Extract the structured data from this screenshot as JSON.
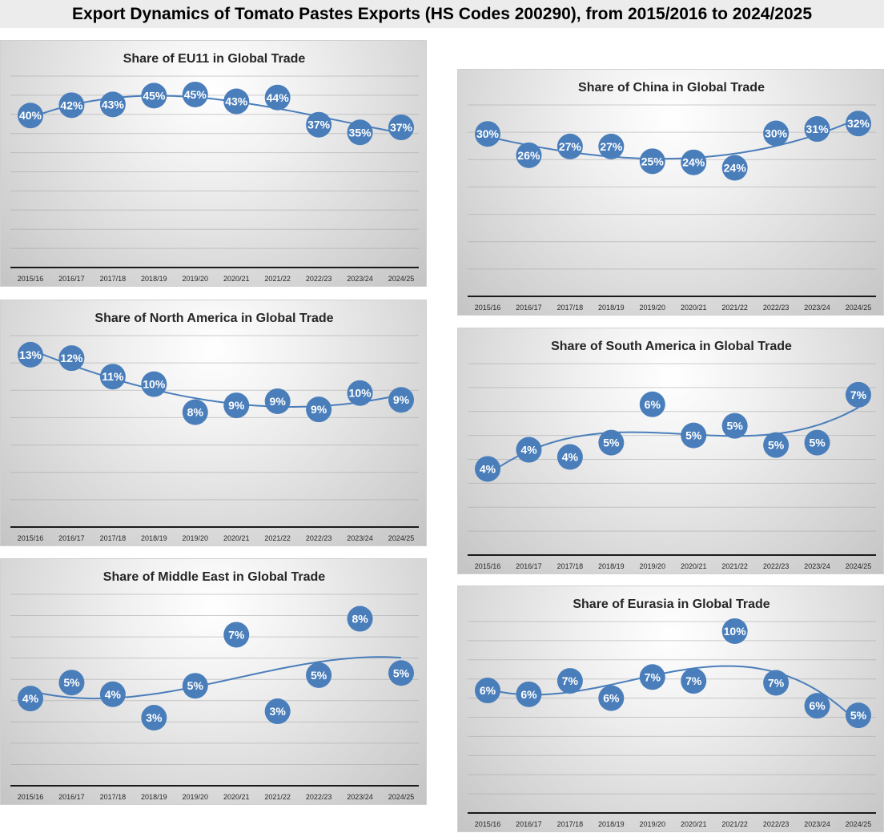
{
  "header": {
    "title": "Export Dynamics of Tomato Pastes Exports (HS Codes 200290), from 2015/2016 to 2024/2025"
  },
  "colors": {
    "marker": "#4a7ebb",
    "trendline": "#4a7ebb",
    "grid": "#a6a6a6",
    "axis": "#1a1a1a"
  },
  "chart_data": [
    {
      "id": "eu11",
      "type": "line",
      "title": "Share of EU11 in Global Trade",
      "categories": [
        "2015/16",
        "2016/17",
        "2017/18",
        "2018/19",
        "2019/20",
        "2020/21",
        "2021/22",
        "2022/23",
        "2023/24",
        "2024/25"
      ],
      "values": [
        39.7,
        42.4,
        42.6,
        44.9,
        45.2,
        43.4,
        44.4,
        37.3,
        35.3,
        36.6
      ],
      "labels": [
        "40%",
        "42%",
        "43%",
        "45%",
        "45%",
        "43%",
        "44%",
        "37%",
        "35%",
        "37%"
      ],
      "ylim": [
        0,
        50
      ],
      "ystep": 5,
      "grid": true,
      "trendline": "polynomial-3"
    },
    {
      "id": "north-america",
      "type": "line",
      "title": "Share of North America in Global Trade",
      "categories": [
        "2015/16",
        "2016/17",
        "2017/18",
        "2018/19",
        "2019/20",
        "2020/21",
        "2021/22",
        "2022/23",
        "2023/24",
        "2024/25"
      ],
      "values": [
        12.6,
        12.35,
        11.0,
        10.45,
        8.4,
        8.9,
        9.2,
        8.6,
        9.8,
        9.3
      ],
      "labels": [
        "13%",
        "12%",
        "11%",
        "10%",
        "8%",
        "9%",
        "9%",
        "9%",
        "10%",
        "9%"
      ],
      "ylim": [
        0,
        14
      ],
      "ystep": 2,
      "grid": true,
      "trendline": "polynomial-3"
    },
    {
      "id": "middle-east",
      "type": "line",
      "title": "Share of Middle East in Global Trade",
      "categories": [
        "2015/16",
        "2016/17",
        "2017/18",
        "2018/19",
        "2019/20",
        "2020/21",
        "2021/22",
        "2022/23",
        "2023/24",
        "2024/25"
      ],
      "values": [
        4.1,
        4.85,
        4.3,
        3.2,
        4.7,
        7.1,
        3.5,
        5.2,
        7.85,
        5.3
      ],
      "labels": [
        "4%",
        "5%",
        "4%",
        "3%",
        "5%",
        "7%",
        "3%",
        "5%",
        "8%",
        "5%"
      ],
      "ylim": [
        0,
        9
      ],
      "ystep": 1,
      "grid": true,
      "trendline": "polynomial-3"
    },
    {
      "id": "china",
      "type": "line",
      "title": "Share of China in Global Trade",
      "categories": [
        "2015/16",
        "2016/17",
        "2017/18",
        "2018/19",
        "2019/20",
        "2020/21",
        "2021/22",
        "2022/23",
        "2023/24",
        "2024/25"
      ],
      "values": [
        29.7,
        25.8,
        27.4,
        27.4,
        24.7,
        24.5,
        23.5,
        29.8,
        30.6,
        31.6
      ],
      "labels": [
        "30%",
        "26%",
        "27%",
        "27%",
        "25%",
        "24%",
        "24%",
        "30%",
        "31%",
        "32%"
      ],
      "ylim": [
        0,
        35
      ],
      "ystep": 5,
      "grid": true,
      "trendline": "polynomial-3"
    },
    {
      "id": "south-america",
      "type": "line",
      "title": "Share of South America in Global Trade",
      "categories": [
        "2015/16",
        "2016/17",
        "2017/18",
        "2018/19",
        "2019/20",
        "2020/21",
        "2021/22",
        "2022/23",
        "2023/24",
        "2024/25"
      ],
      "values": [
        3.6,
        4.4,
        4.1,
        4.7,
        6.3,
        5.0,
        5.4,
        4.6,
        4.7,
        6.7
      ],
      "labels": [
        "4%",
        "4%",
        "4%",
        "5%",
        "6%",
        "5%",
        "5%",
        "5%",
        "5%",
        "7%"
      ],
      "ylim": [
        0,
        8
      ],
      "ystep": 1,
      "grid": true,
      "trendline": "polynomial-3"
    },
    {
      "id": "eurasia",
      "type": "line",
      "title": "Share of Eurasia in Global Trade",
      "categories": [
        "2015/16",
        "2016/17",
        "2017/18",
        "2018/19",
        "2019/20",
        "2020/21",
        "2021/22",
        "2022/23",
        "2023/24",
        "2024/25"
      ],
      "values": [
        6.4,
        6.2,
        6.9,
        6.0,
        7.1,
        6.9,
        9.5,
        6.8,
        5.6,
        5.1
      ],
      "labels": [
        "6%",
        "6%",
        "7%",
        "6%",
        "7%",
        "7%",
        "10%",
        "7%",
        "6%",
        "5%"
      ],
      "ylim": [
        0,
        10
      ],
      "ystep": 1,
      "grid": true,
      "trendline": "polynomial-3"
    }
  ]
}
